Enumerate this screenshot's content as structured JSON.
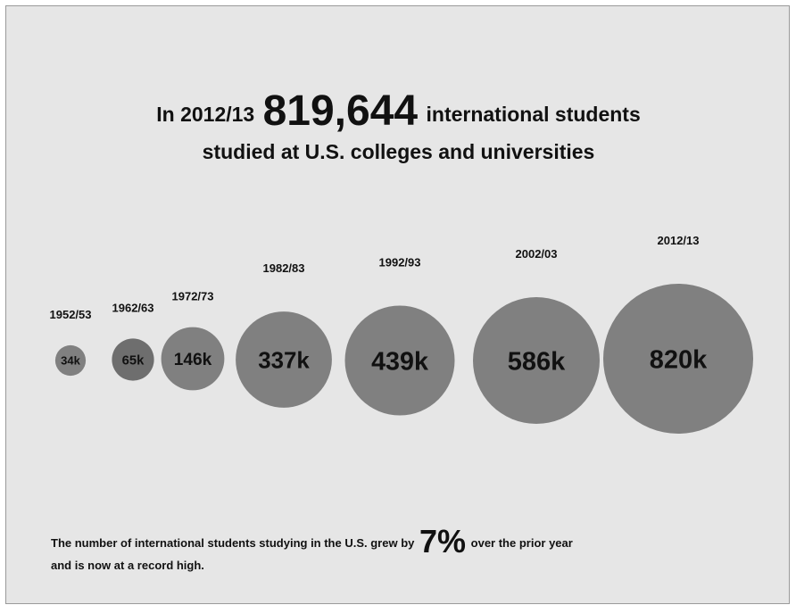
{
  "headline": {
    "line1_prefix": "In 2012/13",
    "big_number": "819,644",
    "line1_suffix": "international students",
    "line2": "studied at U.S. colleges and universities"
  },
  "footnote": {
    "line1_prefix": "The number of international students studying in the U.S. grew by",
    "percent": "7%",
    "line1_suffix": "over the prior year",
    "line2": "and is now at a record high."
  },
  "colors": {
    "background": "#e6e6e6",
    "bubble": "#808080",
    "bubble_dark": "#6e6e6e",
    "text": "#111111"
  },
  "chart_data": {
    "type": "bubble",
    "categories": [
      "1952/53",
      "1962/63",
      "1972/73",
      "1982/83",
      "1992/93",
      "2002/03",
      "2012/13"
    ],
    "values": [
      34,
      65,
      146,
      337,
      439,
      586,
      820
    ],
    "labels": [
      "34k",
      "65k",
      "146k",
      "337k",
      "439k",
      "586k",
      "820k"
    ],
    "unit": "thousand international students"
  }
}
